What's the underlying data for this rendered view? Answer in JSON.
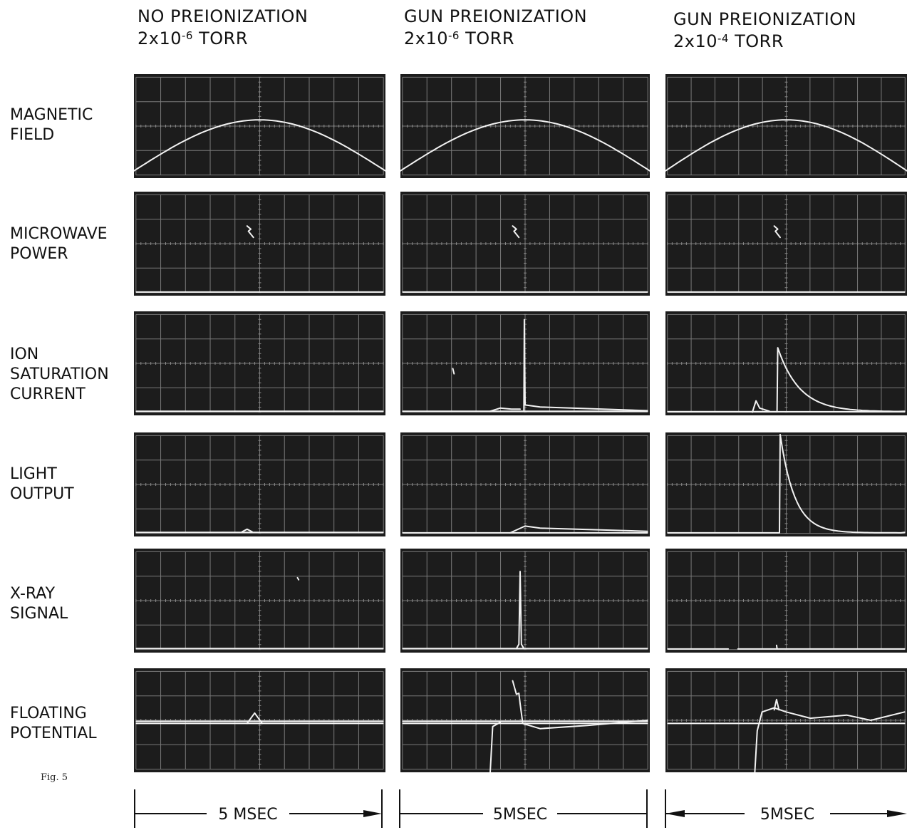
{
  "columns": [
    {
      "heading": "NO PREIONIZATION",
      "pressure_mantissa": "2x10",
      "pressure_exponent": "-6",
      "pressure_unit": "TORR",
      "time_scale": "5 MSEC"
    },
    {
      "heading": "GUN PREIONIZATION",
      "pressure_mantissa": "2x10",
      "pressure_exponent": "-6",
      "pressure_unit": "TORR",
      "time_scale": "5MSEC"
    },
    {
      "heading": "GUN PREIONIZATION",
      "pressure_mantissa": "2x10",
      "pressure_exponent": "-4",
      "pressure_unit": "TORR",
      "time_scale": "5MSEC"
    }
  ],
  "rows": [
    {
      "label": "MAGNETIC\nFIELD"
    },
    {
      "label": "MICROWAVE\nPOWER"
    },
    {
      "label": "ION\nSATURATION\nCURRENT"
    },
    {
      "label": "LIGHT\nOUTPUT"
    },
    {
      "label": "X-RAY\nSIGNAL"
    },
    {
      "label": "FLOATING\nPOTENTIAL"
    }
  ],
  "figure_label": "Fig. 5",
  "colors": {
    "screen": "#1c1c1c",
    "grid": "#8a8a8a",
    "trace": "#f2f2f2",
    "paper": "#ffffff"
  }
}
